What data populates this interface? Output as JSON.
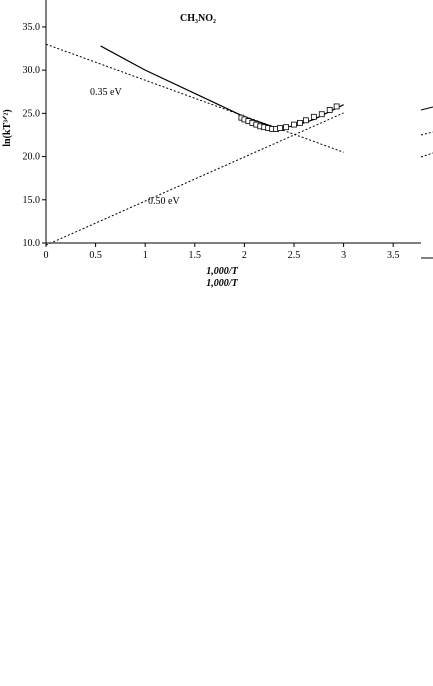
{
  "chart_data": {
    "type": "scatter",
    "title": "CH₃NO₂",
    "x_label": "1,000/T",
    "y_label": "ln(kT³ᐟ²)",
    "annotations": [
      "0.35 eV",
      "0.50 eV"
    ],
    "xlim": [
      0,
      3.75
    ],
    "ylim": [
      10,
      38
    ],
    "xticks": [
      0,
      0.5,
      1,
      1.5,
      2,
      2.5,
      3,
      3.5
    ],
    "yticks": [
      {
        "value": 10,
        "label": "10.0"
      },
      {
        "value": 15,
        "label": "15.0"
      },
      {
        "value": 20,
        "label": "20.0"
      },
      {
        "value": 25,
        "label": "25.0"
      },
      {
        "value": 30,
        "label": "30.0"
      },
      {
        "value": 35,
        "label": "35.0"
      }
    ],
    "points": {
      "marker": "square",
      "color": "#000000",
      "x": [
        1.97,
        2.0,
        2.04,
        2.08,
        2.12,
        2.16,
        2.2,
        2.24,
        2.28,
        2.32,
        2.36,
        2.42,
        2.5,
        2.56,
        2.62,
        2.7,
        2.78,
        2.86,
        2.93
      ],
      "values": [
        24.5,
        24.3,
        24.1,
        23.9,
        23.7,
        23.5,
        23.4,
        23.3,
        23.2,
        23.2,
        23.3,
        23.4,
        23.7,
        23.9,
        24.2,
        24.6,
        24.9,
        25.4,
        25.8
      ]
    },
    "lines": [
      {
        "style": "solid",
        "color": "#000000",
        "x": [
          0.55,
          1.0,
          1.5,
          2.0,
          2.3,
          2.5,
          2.7,
          3.0
        ],
        "values": [
          32.8,
          30.0,
          27.3,
          24.6,
          23.4,
          23.5,
          24.3,
          26.0
        ]
      },
      {
        "style": "dotted",
        "color": "#000000",
        "x": [
          0,
          3
        ],
        "values": [
          33,
          20.5
        ]
      },
      {
        "style": "dotted",
        "color": "#000000",
        "x": [
          0,
          3
        ],
        "values": [
          9.75,
          25.05
        ]
      }
    ]
  }
}
